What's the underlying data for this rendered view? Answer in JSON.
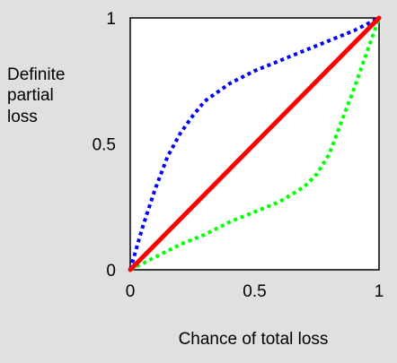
{
  "chart_data": {
    "type": "line",
    "title": "",
    "xlabel": "Chance of total loss",
    "ylabel_lines": [
      "Definite",
      "partial",
      "loss"
    ],
    "xlim": [
      0,
      1
    ],
    "ylim": [
      0,
      1
    ],
    "x_ticks": [
      {
        "value": 0,
        "label": "0"
      },
      {
        "value": 0.5,
        "label": "0.5"
      },
      {
        "value": 1,
        "label": "1"
      }
    ],
    "y_ticks": [
      {
        "value": 0,
        "label": "0"
      },
      {
        "value": 0.5,
        "label": "0.5"
      },
      {
        "value": 1,
        "label": "1"
      }
    ],
    "grid": false,
    "legend": "none",
    "series": [
      {
        "color": "#0000ff",
        "style": "dotted",
        "x": [
          0,
          0.05,
          0.1,
          0.15,
          0.2,
          0.25,
          0.3,
          0.4,
          0.5,
          0.6,
          0.7,
          0.8,
          0.9,
          1.0
        ],
        "y": [
          0,
          0.17,
          0.32,
          0.45,
          0.54,
          0.61,
          0.67,
          0.74,
          0.79,
          0.83,
          0.87,
          0.91,
          0.95,
          1.0
        ]
      },
      {
        "color": "#ff0000",
        "style": "solid",
        "x": [
          0,
          1
        ],
        "y": [
          0,
          1
        ]
      },
      {
        "color": "#00ff00",
        "style": "dotted",
        "x": [
          0,
          0.1,
          0.2,
          0.3,
          0.4,
          0.5,
          0.6,
          0.65,
          0.7,
          0.75,
          0.8,
          0.85,
          0.9,
          0.95,
          1.0
        ],
        "y": [
          0,
          0.05,
          0.1,
          0.14,
          0.19,
          0.23,
          0.27,
          0.3,
          0.33,
          0.38,
          0.46,
          0.59,
          0.72,
          0.86,
          1.0
        ]
      }
    ]
  }
}
